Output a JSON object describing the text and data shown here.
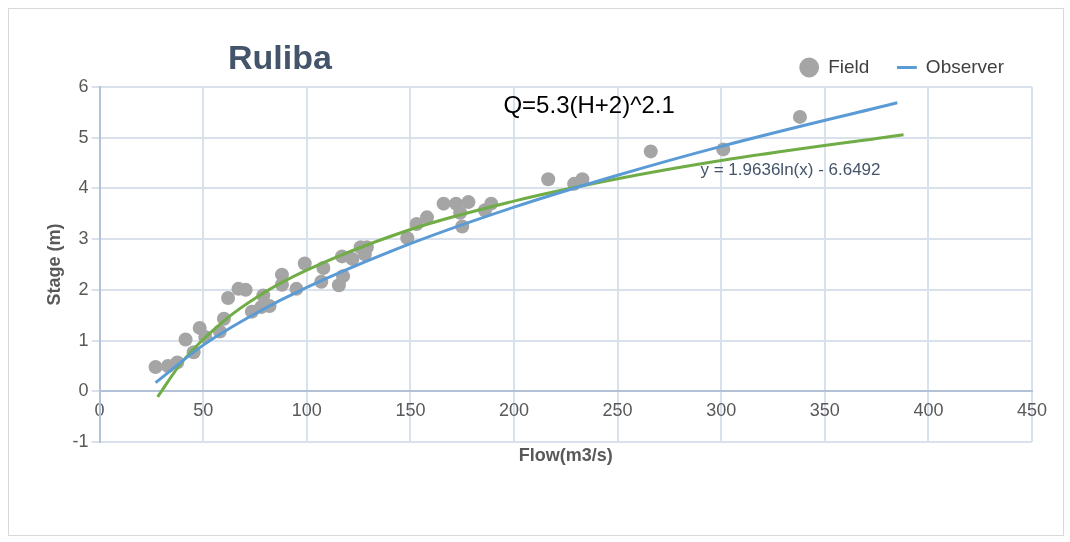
{
  "chart_data": {
    "type": "scatter",
    "title": "Ruliba",
    "xlabel": "Flow(m3/s)",
    "ylabel": "Stage (m)",
    "xlim": [
      0,
      450
    ],
    "xticks": [
      0,
      50,
      100,
      150,
      200,
      250,
      300,
      350,
      400,
      450
    ],
    "ylim": [
      -1,
      6
    ],
    "yticks": [
      -1,
      0,
      1,
      2,
      3,
      4,
      5,
      6
    ],
    "grid": true,
    "legend": "top right",
    "annotations": [
      "Q=5.3(H+2)^2.1",
      "y = 1.9636ln(x) - 6.6492"
    ],
    "series": [
      {
        "name": "Field",
        "marker": "circle",
        "color": "#a5a5a5",
        "x": [
          27,
          33,
          37.5,
          41.5,
          45.4,
          48.3,
          51,
          58,
          60,
          62,
          67,
          70.5,
          73.5,
          78,
          79,
          82,
          88,
          88,
          95,
          99,
          107,
          108,
          115.5,
          117,
          117.5,
          122,
          126,
          128,
          129,
          148.5,
          153,
          158,
          166,
          172,
          174,
          175,
          178,
          186,
          189,
          216.5,
          229,
          233,
          266,
          301,
          338
        ],
        "values": [
          0.48,
          0.5,
          0.57,
          1.02,
          0.77,
          1.25,
          1.07,
          1.18,
          1.43,
          1.84,
          2.02,
          2.0,
          1.57,
          1.66,
          1.89,
          1.68,
          2.3,
          2.1,
          2.02,
          2.52,
          2.16,
          2.43,
          2.09,
          2.66,
          2.27,
          2.61,
          2.84,
          2.7,
          2.84,
          3.02,
          3.3,
          3.43,
          3.7,
          3.7,
          3.52,
          3.25,
          3.73,
          3.57,
          3.7,
          4.18,
          4.09,
          4.18,
          4.73,
          4.77,
          5.41
        ]
      },
      {
        "name": "Observer",
        "type": "line",
        "color": "#5b9bd5",
        "x": [
          27,
          50,
          75,
          100,
          150,
          200,
          250,
          300,
          385
        ],
        "values": [
          0.17,
          0.91,
          1.53,
          2.05,
          2.91,
          3.63,
          4.26,
          4.83,
          5.69
        ]
      },
      {
        "type": "line",
        "color": "#70ad47",
        "x": [
          28,
          40,
          60,
          80,
          100,
          150,
          200,
          250,
          300,
          388
        ],
        "values": [
          -0.11,
          0.59,
          1.39,
          1.96,
          2.39,
          3.19,
          3.75,
          4.19,
          4.55,
          5.06
        ]
      }
    ]
  }
}
